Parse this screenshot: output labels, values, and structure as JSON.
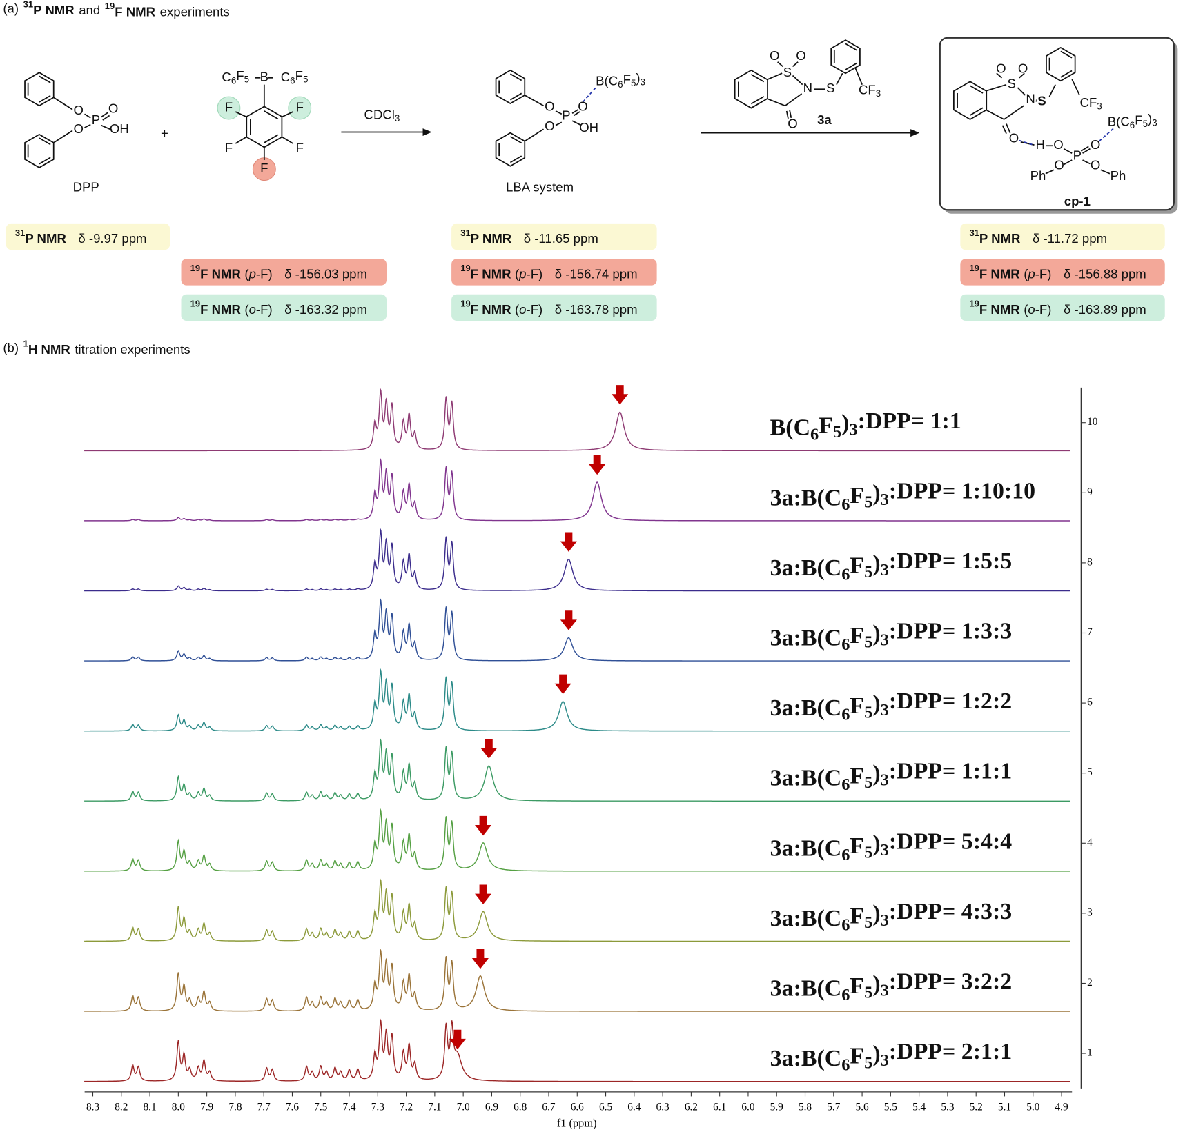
{
  "section_a": {
    "label": "(a)",
    "items": [
      [
        "31",
        "P NMR"
      ],
      [
        "19",
        "F NMR"
      ]
    ],
    "joiner": "and",
    "suffix": "experiments"
  },
  "molecules": {
    "dpp": {
      "atoms": [
        "O",
        "O",
        "P",
        "O",
        "OH"
      ],
      "name": "DPP"
    },
    "plus": "+",
    "bcf": {
      "atoms": [
        [
          "C",
          "6",
          "F",
          "5"
        ],
        "B",
        [
          "C",
          "6",
          "F",
          "5"
        ],
        "F",
        "F",
        "F",
        "F",
        "F"
      ]
    },
    "reaction_1": {
      "solvent": [
        "CDCl",
        "3"
      ]
    },
    "lba": {
      "atoms": [
        [
          "B(C",
          "6",
          "F",
          "5",
          ")",
          "3"
        ],
        "O",
        "O",
        "P",
        "O",
        "OH"
      ],
      "name": "LBA system"
    },
    "sub_3a": {
      "atoms": [
        "O",
        "O",
        "S",
        "N",
        "S",
        [
          "CF",
          "3"
        ],
        "O"
      ],
      "name": "3a"
    },
    "cp1": {
      "atoms": [
        "O",
        "O",
        "S",
        "N",
        "S",
        [
          "CF",
          "3"
        ],
        [
          "B(C",
          "6",
          "F",
          "5",
          ")",
          "3"
        ],
        "O",
        "H",
        "O",
        "P",
        "O",
        "O",
        "O",
        "Ph",
        "Ph"
      ],
      "name": "cp-1"
    }
  },
  "nmr": {
    "dpp": [
      {
        "nucleus": [
          "31",
          "P NMR"
        ],
        "shift": "δ -9.97 ppm",
        "color": "#fbf8d3"
      }
    ],
    "bcf": [
      {
        "nucleus": [
          "19",
          "F NMR"
        ],
        "site": [
          "(",
          "p",
          "-F)"
        ],
        "shift": "δ -156.03 ppm",
        "color": "#f3a899"
      },
      {
        "nucleus": [
          "19",
          "F NMR"
        ],
        "site": [
          "(",
          "o",
          "-F)"
        ],
        "shift": "δ -163.32 ppm",
        "color": "#cdeedd"
      }
    ],
    "lba": [
      {
        "nucleus": [
          "31",
          "P NMR"
        ],
        "shift": "δ -11.65 ppm",
        "color": "#fbf8d3"
      },
      {
        "nucleus": [
          "19",
          "F NMR"
        ],
        "site": [
          "(",
          "p",
          "-F)"
        ],
        "shift": "δ -156.74 ppm",
        "color": "#f3a899"
      },
      {
        "nucleus": [
          "19",
          "F NMR"
        ],
        "site": [
          "(",
          "o",
          "-F)"
        ],
        "shift": "δ -163.78 ppm",
        "color": "#cdeedd"
      }
    ],
    "cp1": [
      {
        "nucleus": [
          "31",
          "P NMR"
        ],
        "shift": "δ -11.72 ppm",
        "color": "#fbf8d3"
      },
      {
        "nucleus": [
          "19",
          "F NMR"
        ],
        "site": [
          "(",
          "p",
          "-F)"
        ],
        "shift": "δ -156.88 ppm",
        "color": "#f3a899"
      },
      {
        "nucleus": [
          "19",
          "F NMR"
        ],
        "site": [
          "(",
          "o",
          "-F)"
        ],
        "shift": "δ -163.89 ppm",
        "color": "#cdeedd"
      }
    ]
  },
  "section_b": {
    "label": "(b)",
    "items": [
      [
        "1",
        "H NMR"
      ]
    ],
    "suffix": "titration experiments"
  },
  "chart_data": {
    "type": "spectrum",
    "xlabel": "f1 (ppm)",
    "x_reversed": true,
    "xlim": [
      8.35,
      4.85
    ],
    "xticks": [
      8.3,
      8.2,
      8.1,
      {
        "value": 8,
        "label": "8.0"
      },
      7.9,
      7.8,
      7.7,
      7.6,
      7.5,
      7.4,
      7.3,
      7.2,
      7.1,
      {
        "value": 7,
        "label": "7.0"
      },
      6.9,
      6.8,
      6.7,
      6.6,
      6.5,
      6.4,
      6.3,
      6.2,
      6.1,
      {
        "value": 6,
        "label": "6.0"
      },
      5.9,
      5.8,
      5.7,
      5.6,
      5.5,
      5.4,
      5.3,
      5.2,
      5.1,
      {
        "value": 5,
        "label": "5.0"
      },
      4.9
    ],
    "ylim": [
      0.5,
      10.5
    ],
    "yticks": [
      1,
      2,
      3,
      4,
      5,
      6,
      7,
      8,
      9,
      10
    ],
    "y_axis_side": "right",
    "arrow_color": "#c00000",
    "linewidth": 0.006,
    "oh_linewidth": 0.018,
    "dpp_peaks": {
      "ppm": [
        7.31,
        7.29,
        7.27,
        7.25,
        7.21,
        7.19,
        7.17,
        7.06,
        7.04
      ],
      "height": [
        0.35,
        0.78,
        0.62,
        0.6,
        0.38,
        0.48,
        0.22,
        0.72,
        0.65
      ]
    },
    "ligand_peaks": {
      "ppm": [
        8.16,
        8.14,
        8.0,
        7.98,
        7.96,
        7.93,
        7.91,
        7.89,
        7.69,
        7.67,
        7.55,
        7.53,
        7.5,
        7.48,
        7.45,
        7.43,
        7.4,
        7.37
      ],
      "height": [
        0.22,
        0.2,
        0.55,
        0.35,
        0.15,
        0.18,
        0.28,
        0.12,
        0.18,
        0.16,
        0.2,
        0.12,
        0.2,
        0.12,
        0.18,
        0.12,
        0.15,
        0.16
      ]
    },
    "series": [
      {
        "name": [
          "B(C",
          "6",
          "F",
          "5",
          ")",
          "3",
          ":DPP= 1:1"
        ],
        "color": "#8e3a73",
        "offset": 9.6,
        "oh_peak": {
          "ppm": 6.45,
          "height": 0.55
        },
        "ligand_scale": 0
      },
      {
        "name": [
          "3a:B(C",
          "6",
          "F",
          "5",
          ")",
          "3",
          ":DPP= 1:10:10"
        ],
        "color": "#80348e",
        "offset": 8.6,
        "oh_peak": {
          "ppm": 6.53,
          "height": 0.55
        },
        "ligand_scale": 0.08
      },
      {
        "name": [
          "3a:B(C",
          "6",
          "F",
          "5",
          ")",
          "3",
          ":DPP= 1:5:5"
        ],
        "color": "#3b2c8c",
        "offset": 7.6,
        "oh_peak": {
          "ppm": 6.63,
          "height": 0.45
        },
        "ligand_scale": 0.12
      },
      {
        "name": [
          "3a:B(C",
          "6",
          "F",
          "5",
          ")",
          "3",
          ":DPP= 1:3:3"
        ],
        "color": "#2f4f96",
        "offset": 6.6,
        "oh_peak": {
          "ppm": 6.63,
          "height": 0.33
        },
        "ligand_scale": 0.25
      },
      {
        "name": [
          "3a:B(C",
          "6",
          "F",
          "5",
          ")",
          "3",
          ":DPP= 1:2:2"
        ],
        "color": "#2b8a88",
        "offset": 5.6,
        "oh_peak": {
          "ppm": 6.65,
          "height": 0.42
        },
        "ligand_scale": 0.4
      },
      {
        "name": [
          "3a:B(C",
          "6",
          "F",
          "5",
          ")",
          "3",
          ":DPP= 1:1:1"
        ],
        "color": "#3b9a63",
        "offset": 4.6,
        "oh_peak": {
          "ppm": 6.91,
          "height": 0.5
        },
        "ligand_scale": 0.6
      },
      {
        "name": [
          "3a:B(C",
          "6",
          "F",
          "5",
          ")",
          "3",
          ":DPP= 5:4:4"
        ],
        "color": "#55a043",
        "offset": 3.6,
        "oh_peak": {
          "ppm": 6.93,
          "height": 0.4
        },
        "ligand_scale": 0.75
      },
      {
        "name": [
          "3a:B(C",
          "6",
          "F",
          "5",
          ")",
          "3",
          ":DPP= 4:3:3"
        ],
        "color": "#8c9a3a",
        "offset": 2.6,
        "oh_peak": {
          "ppm": 6.93,
          "height": 0.42
        },
        "ligand_scale": 0.85
      },
      {
        "name": [
          "3a:B(C",
          "6",
          "F",
          "5",
          ")",
          "3",
          ":DPP= 3:2:2"
        ],
        "color": "#9a7338",
        "offset": 1.6,
        "oh_peak": {
          "ppm": 6.94,
          "height": 0.5
        },
        "ligand_scale": 0.95
      },
      {
        "name": [
          "3a:B(C",
          "6",
          "F",
          "5",
          ")",
          "3",
          ":DPP= 2:1:1"
        ],
        "color": "#9c2626",
        "offset": 0.6,
        "oh_peak": {
          "ppm": 7.02,
          "height": 0.35
        },
        "ligand_scale": 1.0
      }
    ]
  }
}
